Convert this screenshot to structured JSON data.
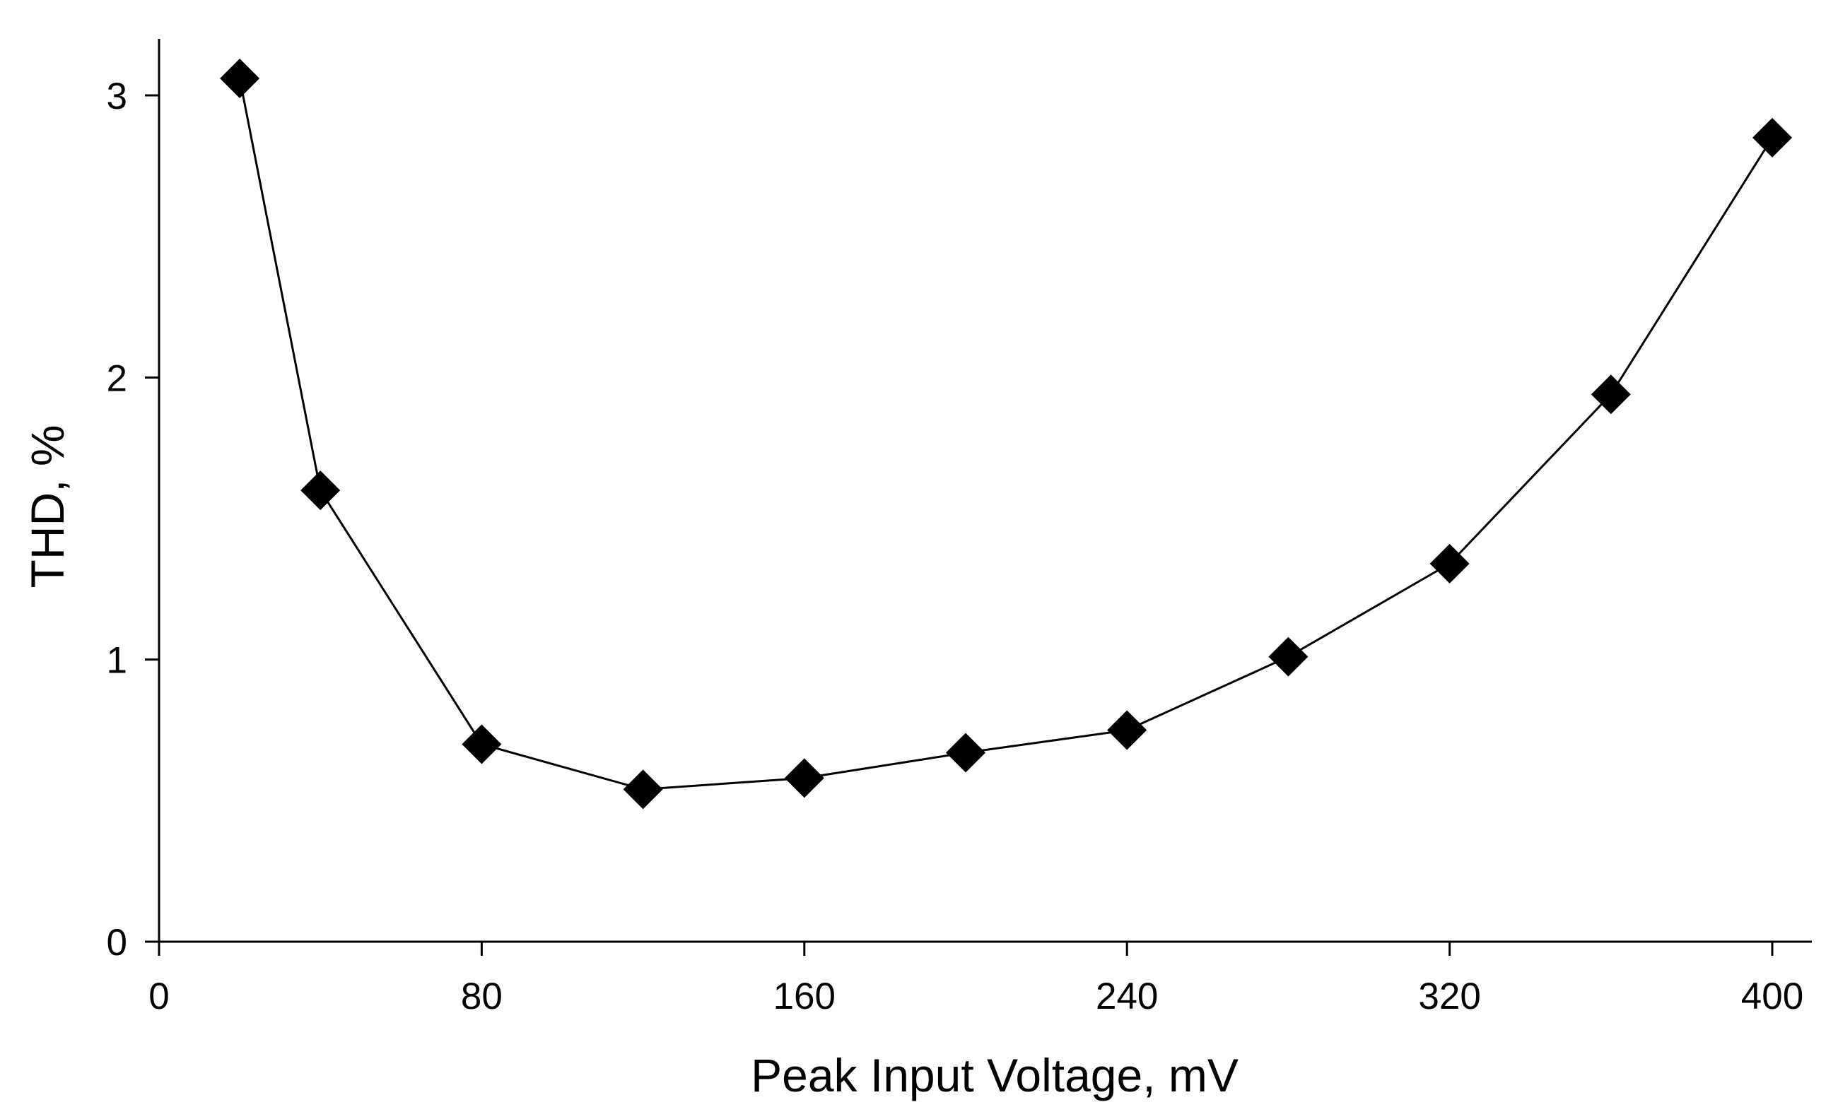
{
  "chart_data": {
    "type": "line",
    "title": "",
    "xlabel": "Peak Input Voltage, mV",
    "ylabel": "THD, %",
    "xlim": [
      0,
      410
    ],
    "ylim": [
      0,
      3.2
    ],
    "xticks": [
      0,
      80,
      160,
      240,
      320,
      400
    ],
    "yticks": [
      0,
      1,
      2,
      3
    ],
    "grid": false,
    "legend": "none",
    "series": [
      {
        "name": "THD",
        "marker": "diamond",
        "color": "#000000",
        "x": [
          20,
          40,
          80,
          120,
          160,
          200,
          240,
          280,
          320,
          360,
          400
        ],
        "y": [
          3.06,
          1.6,
          0.7,
          0.54,
          0.58,
          0.67,
          0.75,
          1.01,
          1.34,
          1.94,
          2.85
        ]
      }
    ]
  }
}
